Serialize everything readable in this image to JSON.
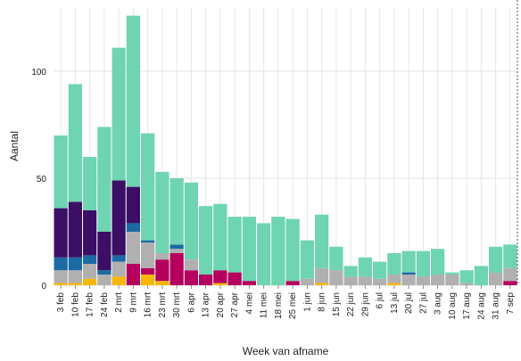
{
  "chart_data": {
    "type": "bar",
    "stacked": true,
    "title": "",
    "xlabel": "Week van afname",
    "ylabel": "Aantal",
    "ylim": [
      0,
      130
    ],
    "yticks": [
      0,
      50,
      100
    ],
    "grid": true,
    "legend": "none",
    "categories": [
      "3 feb",
      "10 feb",
      "17 feb",
      "24 feb",
      "2 mrt",
      "9 mrt",
      "16 mrt",
      "23 mrt",
      "30 mrt",
      "6 apr",
      "13 apr",
      "20 apr",
      "27 apr",
      "4 mei",
      "11 mei",
      "18 mei",
      "25 mei",
      "1 jun",
      "8 jun",
      "15 jun",
      "22 jun",
      "29 jun",
      "6 jul",
      "13 jul",
      "20 jul",
      "27 jul",
      "3 aug",
      "10 aug",
      "17 aug",
      "24 aug",
      "31 aug",
      "7 sep"
    ],
    "xtick_labels": [
      "3 feb",
      "10 feb",
      "17 feb",
      "24 feb",
      "2 mrt",
      "9 mrt",
      "16 mrt",
      "23 mrt",
      "30 mrt",
      "6 apr",
      "13 apr",
      "20 apr",
      "27 apr",
      "4 mei",
      "11 mei",
      "18 mei",
      "25 mei",
      "1 jun",
      "8 jun",
      "15 jun",
      "22 jun",
      "29 jun",
      "6 jul",
      "13 jul",
      "20 jul",
      "27 jul",
      "3 aug",
      "10 aug",
      "17 aug",
      "24 aug",
      "31 aug",
      "7 sep"
    ],
    "series": [
      {
        "color": "#f5b700",
        "values": [
          1,
          1,
          3,
          0,
          4,
          0,
          5,
          2,
          0,
          0,
          0,
          1,
          0,
          0,
          0,
          0,
          0,
          0,
          1,
          0,
          0,
          0,
          0,
          1,
          0,
          0,
          0,
          0,
          0,
          0,
          0,
          0
        ]
      },
      {
        "color": "#b5005d",
        "values": [
          0,
          0,
          0,
          0,
          0,
          10,
          3,
          10,
          15,
          7,
          5,
          6,
          6,
          2,
          0,
          0,
          2,
          0,
          0,
          0,
          0,
          0,
          0,
          0,
          0,
          0,
          0,
          0,
          0,
          0,
          0,
          2
        ]
      },
      {
        "color": "#b0b0b0",
        "values": [
          6,
          6,
          7,
          5,
          7,
          15,
          12,
          3,
          2,
          5,
          0,
          0,
          0,
          0,
          0,
          0,
          0,
          3,
          7,
          7,
          4,
          4,
          3,
          4,
          5,
          4,
          5,
          5,
          1,
          0,
          6,
          6
        ]
      },
      {
        "color": "#1b6aa5",
        "values": [
          6,
          6,
          4,
          2,
          3,
          4,
          1,
          0,
          2,
          0,
          0,
          0,
          0,
          0,
          0,
          0,
          0,
          0,
          0,
          0,
          0,
          0,
          0,
          0,
          1,
          0,
          0,
          0,
          0,
          0,
          0,
          0
        ]
      },
      {
        "color": "#3b0f66",
        "values": [
          23,
          26,
          21,
          18,
          35,
          17,
          0,
          0,
          0,
          0,
          0,
          0,
          0,
          0,
          0,
          0,
          0,
          0,
          0,
          0,
          0,
          0,
          0,
          0,
          0,
          0,
          0,
          0,
          0,
          0,
          0,
          0
        ]
      },
      {
        "color": "#6fd4b1",
        "values": [
          34,
          55,
          25,
          49,
          62,
          80,
          50,
          38,
          31,
          36,
          32,
          31,
          26,
          30,
          29,
          32,
          29,
          18,
          25,
          11,
          5,
          9,
          8,
          10,
          10,
          12,
          12,
          1,
          6,
          9,
          12,
          11
        ]
      }
    ]
  }
}
